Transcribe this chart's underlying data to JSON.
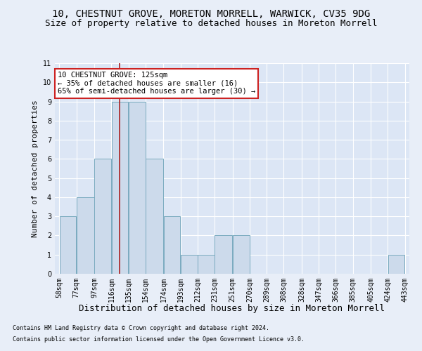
{
  "title1": "10, CHESTNUT GROVE, MORETON MORRELL, WARWICK, CV35 9DG",
  "title2": "Size of property relative to detached houses in Moreton Morrell",
  "xlabel": "Distribution of detached houses by size in Moreton Morrell",
  "ylabel": "Number of detached properties",
  "footer1": "Contains HM Land Registry data © Crown copyright and database right 2024.",
  "footer2": "Contains public sector information licensed under the Open Government Licence v3.0.",
  "bins": [
    58,
    77,
    97,
    116,
    135,
    154,
    174,
    193,
    212,
    231,
    251,
    270,
    289,
    308,
    328,
    347,
    366,
    385,
    405,
    424,
    443
  ],
  "bar_heights": [
    3,
    4,
    6,
    9,
    9,
    6,
    3,
    1,
    1,
    2,
    2,
    0,
    0,
    0,
    0,
    0,
    0,
    0,
    0,
    1
  ],
  "bar_color": "#ccdaeb",
  "bar_edge_color": "#7aaabf",
  "vline_x": 125,
  "vline_color": "#aa2222",
  "ylim": [
    0,
    11
  ],
  "yticks": [
    0,
    1,
    2,
    3,
    4,
    5,
    6,
    7,
    8,
    9,
    10,
    11
  ],
  "annotation_text": "10 CHESTNUT GROVE: 125sqm\n← 35% of detached houses are smaller (16)\n65% of semi-detached houses are larger (30) →",
  "annotation_box_color": "#ffffff",
  "annotation_box_edge": "#cc2222",
  "background_color": "#e8eef8",
  "plot_bg_color": "#dce6f5",
  "grid_color": "#ffffff",
  "title1_fontsize": 10,
  "title2_fontsize": 9,
  "xlabel_fontsize": 9,
  "ylabel_fontsize": 8,
  "tick_fontsize": 7,
  "footer_fontsize": 6,
  "annot_fontsize": 7.5
}
